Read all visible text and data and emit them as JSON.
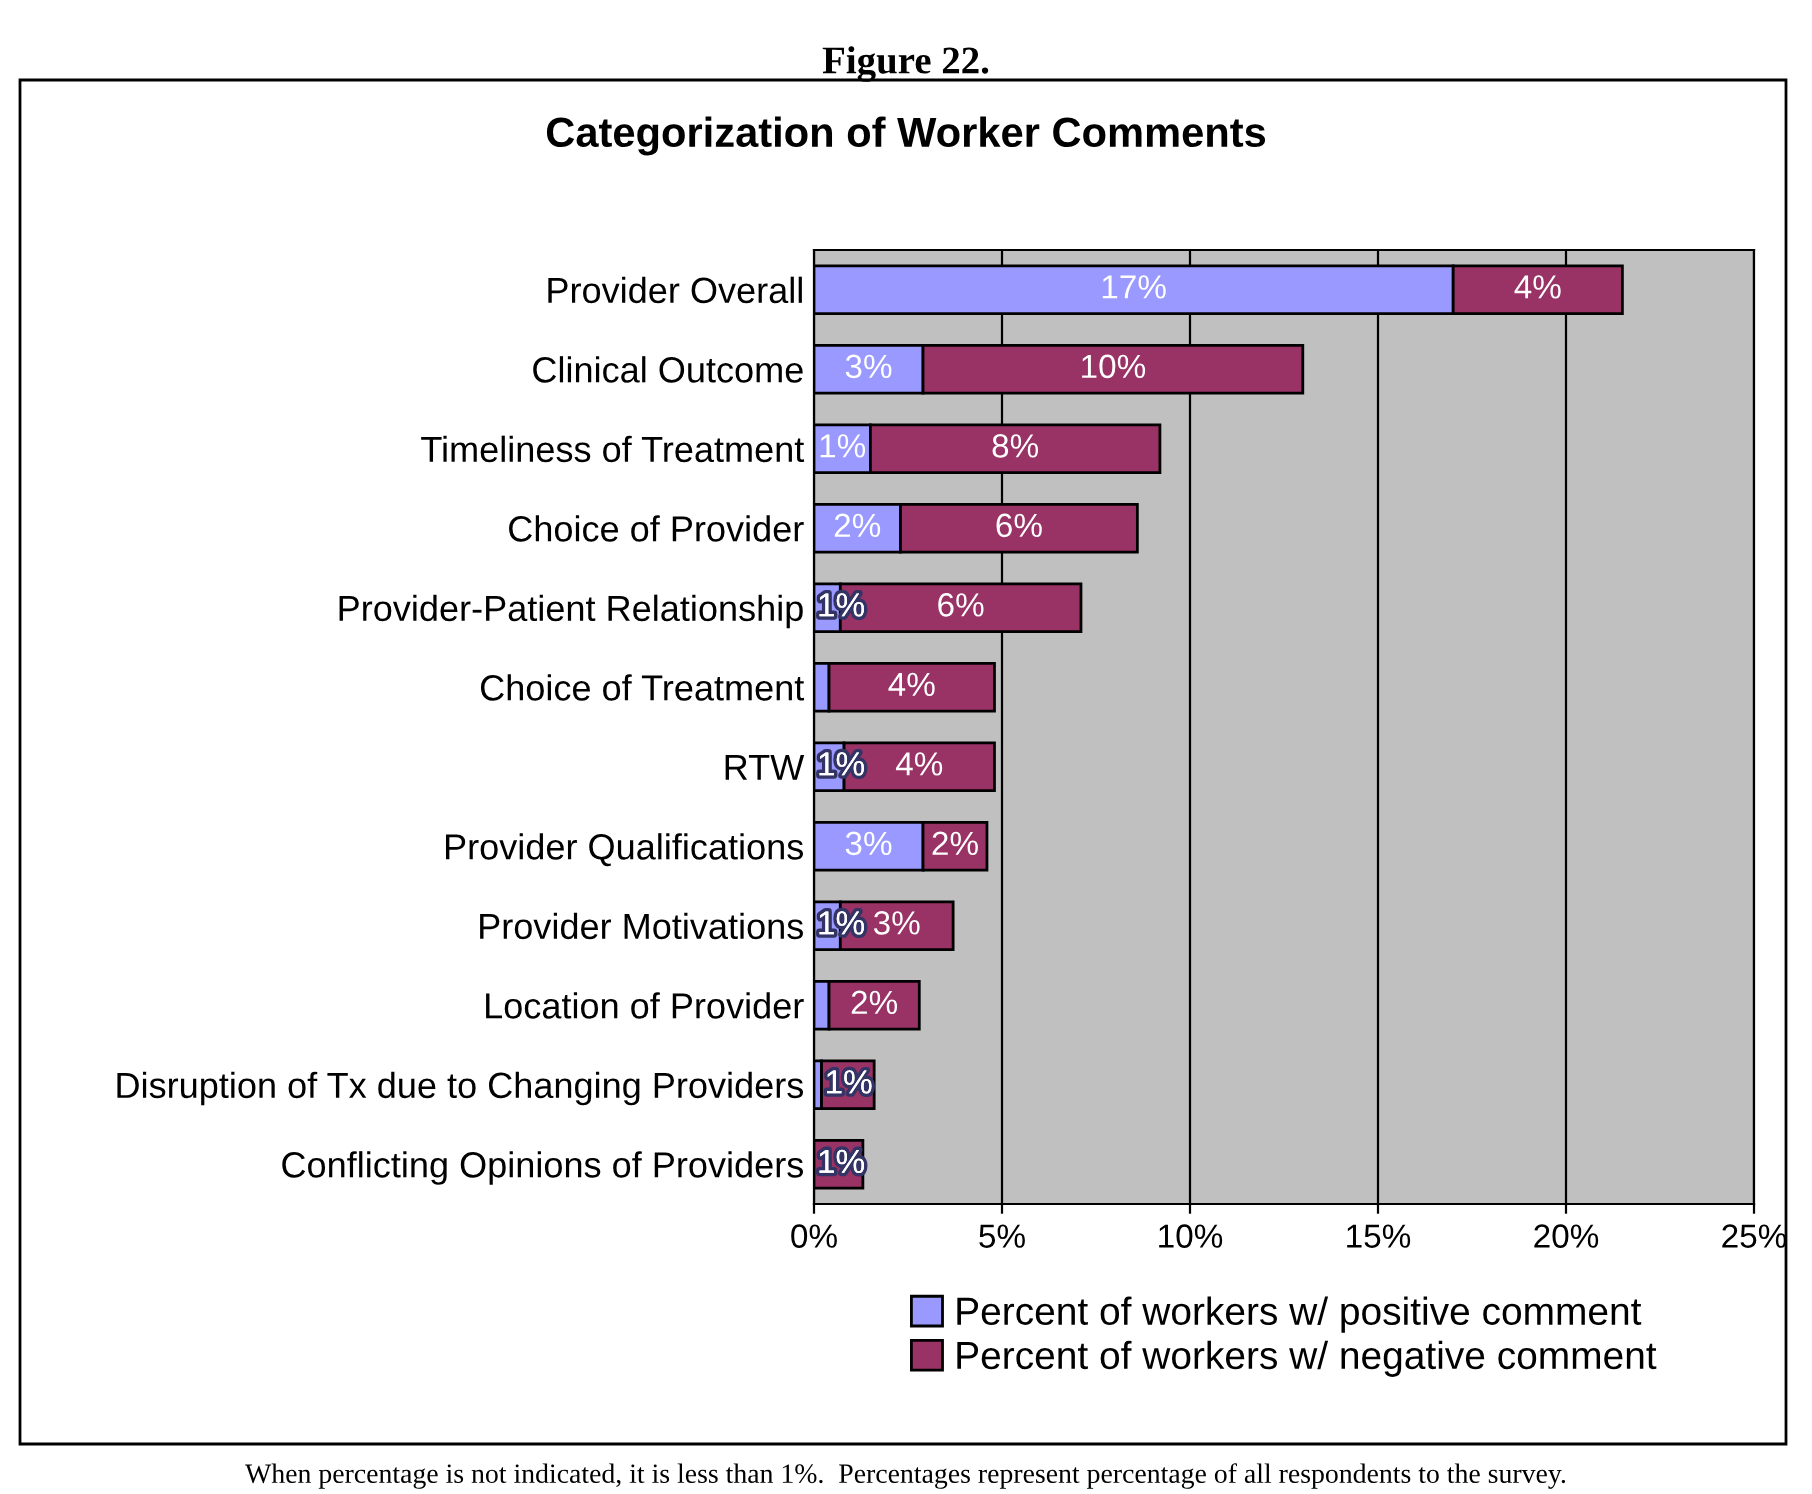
{
  "chart_data": {
    "type": "bar",
    "orientation": "horizontal",
    "stacked": true,
    "title": "Categorization of Worker Comments",
    "subtitle": "Figure 22.",
    "categories": [
      "Provider Overall",
      "Clinical Outcome",
      "Timeliness of Treatment",
      "Choice of Provider",
      "Provider-Patient Relationship",
      "Choice of Treatment",
      "RTW",
      "Provider Qualifications",
      "Provider Motivations",
      "Location of Provider",
      "Disruption of Tx due to Changing Providers",
      "Conflicting Opinions of Providers"
    ],
    "series": [
      {
        "name": "Percent of workers w/ positive comment",
        "color": "#9999ff",
        "values": [
          17.0,
          2.9,
          1.5,
          2.3,
          0.7,
          0.4,
          0.8,
          2.9,
          0.7,
          0.4,
          0.2,
          null
        ],
        "value_labels": [
          "17%",
          "3%",
          "1%",
          "2%",
          "1%",
          null,
          "1%",
          "3%",
          "1%",
          null,
          null,
          null
        ]
      },
      {
        "name": "Percent of workers w/ negative comment",
        "color": "#993366",
        "values": [
          4.5,
          10.1,
          7.7,
          6.3,
          6.4,
          4.4,
          4.0,
          1.7,
          3.0,
          2.4,
          1.4,
          1.3
        ],
        "value_labels": [
          "4%",
          "10%",
          "8%",
          "6%",
          "6%",
          "4%",
          "4%",
          "2%",
          "3%",
          "2%",
          "1%",
          "1%"
        ]
      }
    ],
    "xlim": [
      0,
      25
    ],
    "xticks": [
      {
        "value": 0,
        "label": "0%"
      },
      {
        "value": 5,
        "label": "5%"
      },
      {
        "value": 10,
        "label": "10%"
      },
      {
        "value": 15,
        "label": "15%"
      },
      {
        "value": 20,
        "label": "20%"
      },
      {
        "value": 25,
        "label": "25%"
      }
    ],
    "grid": "x",
    "legend": "bottom",
    "annotations": [
      "When percentage is not indicated, it is less than 1%.  Percentages represent percentage of all respondents to the survey."
    ]
  }
}
